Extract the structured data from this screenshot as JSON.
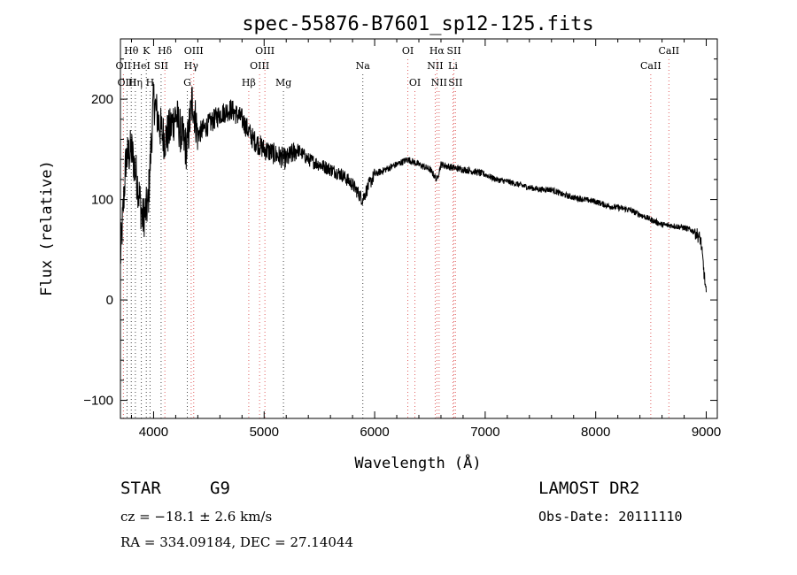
{
  "colors": {
    "emission": "#e06060",
    "absorption": "#444444",
    "spectrum": "#000000"
  },
  "chart_data": {
    "type": "line",
    "title": "spec-55876-B7601_sp12-125.fits",
    "xlabel": "Wavelength (Å)",
    "ylabel": "Flux (relative)",
    "xlim": [
      3700,
      9100
    ],
    "ylim": [
      -118,
      260
    ],
    "xticks": [
      4000,
      5000,
      6000,
      7000,
      8000,
      9000
    ],
    "yticks": [
      -100,
      0,
      100,
      200
    ],
    "grid": false,
    "spectrum_envelope": {
      "x": [
        3700,
        3750,
        3800,
        3850,
        3900,
        3950,
        4000,
        4050,
        4100,
        4150,
        4200,
        4250,
        4300,
        4350,
        4400,
        4500,
        4600,
        4700,
        4800,
        4900,
        5000,
        5100,
        5200,
        5300,
        5400,
        5500,
        5600,
        5700,
        5800,
        5890,
        5950,
        6000,
        6100,
        6200,
        6300,
        6400,
        6500,
        6563,
        6600,
        6700,
        6800,
        6900,
        7000,
        7100,
        7200,
        7300,
        7400,
        7500,
        7600,
        7700,
        7800,
        7900,
        8000,
        8100,
        8200,
        8300,
        8400,
        8500,
        8600,
        8700,
        8800,
        8900,
        8950,
        9000
      ],
      "y": [
        40,
        140,
        150,
        120,
        80,
        95,
        200,
        175,
        160,
        170,
        185,
        165,
        150,
        200,
        165,
        175,
        185,
        190,
        180,
        160,
        150,
        145,
        140,
        150,
        140,
        135,
        130,
        125,
        115,
        100,
        115,
        125,
        130,
        135,
        140,
        135,
        130,
        120,
        135,
        132,
        130,
        128,
        125,
        120,
        118,
        115,
        112,
        110,
        110,
        105,
        102,
        100,
        98,
        94,
        92,
        90,
        85,
        80,
        75,
        74,
        72,
        68,
        60,
        5
      ]
    },
    "emission_lines": [
      {
        "name": "OII",
        "x": 3727,
        "row": 2
      },
      {
        "name": "Hδ",
        "x": 4102,
        "row": 1
      },
      {
        "name": "Hγ",
        "x": 4340,
        "row": 2
      },
      {
        "name": "OIII",
        "x": 4363,
        "row": 1
      },
      {
        "name": "Hβ",
        "x": 4861,
        "row": 3
      },
      {
        "name": "OIII",
        "x": 4959,
        "row": 2
      },
      {
        "name": "OIII",
        "x": 5007,
        "row": 1
      },
      {
        "name": "OI",
        "x": 6300,
        "row": 1
      },
      {
        "name": "OI",
        "x": 6364,
        "row": 3
      },
      {
        "name": "NII",
        "x": 6548,
        "row": 2
      },
      {
        "name": "Hα",
        "x": 6563,
        "row": 1
      },
      {
        "name": "NII",
        "x": 6583,
        "row": 3
      },
      {
        "name": "Li",
        "x": 6708,
        "row": 2
      },
      {
        "name": "SII",
        "x": 6717,
        "row": 1
      },
      {
        "name": "SII",
        "x": 6731,
        "row": 3
      },
      {
        "name": "CaII",
        "x": 8498,
        "row": 2
      },
      {
        "name": "CaII",
        "x": 8662,
        "row": 1
      }
    ],
    "absorption_lines": [
      {
        "name": "OIII",
        "x": 3760,
        "row": 3
      },
      {
        "name": "Hθ",
        "x": 3798,
        "row": 1
      },
      {
        "name": "Hη",
        "x": 3835,
        "row": 3
      },
      {
        "name": "HeI",
        "x": 3889,
        "row": 2
      },
      {
        "name": "K",
        "x": 3934,
        "row": 1
      },
      {
        "name": "H",
        "x": 3968,
        "row": 3
      },
      {
        "name": "SII",
        "x": 4068,
        "row": 2
      },
      {
        "name": "G",
        "x": 4305,
        "row": 3
      },
      {
        "name": "Mg",
        "x": 5175,
        "row": 3
      },
      {
        "name": "Na",
        "x": 5893,
        "row": 2
      }
    ]
  },
  "info": {
    "class": "STAR",
    "subclass": "G9",
    "survey": "LAMOST DR2",
    "cz": "cz = −18.1 ± 2.6 km/s",
    "obs_date": "Obs-Date: 20111110",
    "radec": "RA = 334.09184, DEC =  27.14044"
  }
}
